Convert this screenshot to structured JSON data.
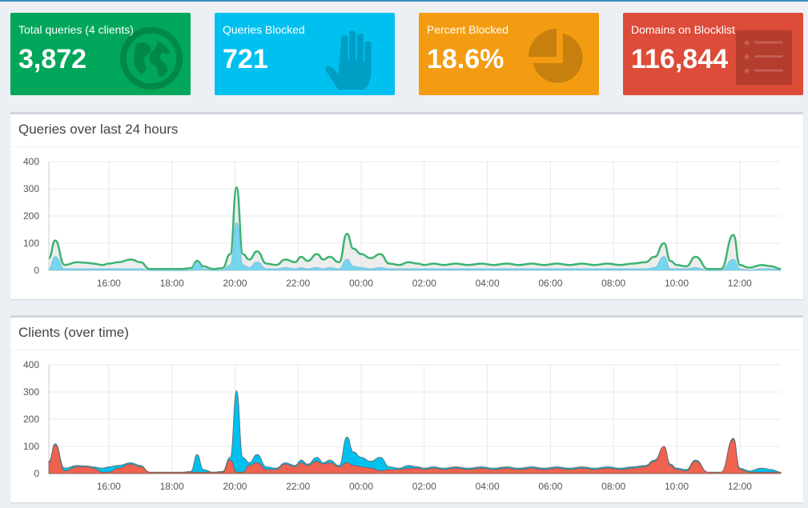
{
  "stats": [
    {
      "label": "Total queries (4 clients)",
      "value": "3,872",
      "color": "#00a65a",
      "icon": "globe-icon"
    },
    {
      "label": "Queries Blocked",
      "value": "721",
      "color": "#00c0ef",
      "icon": "hand-icon"
    },
    {
      "label": "Percent Blocked",
      "value": "18.6%",
      "color": "#f39c12",
      "icon": "pie-chart-icon"
    },
    {
      "label": "Domains on Blocklist",
      "value": "116,844",
      "color": "#dd4b39",
      "icon": "list-icon"
    }
  ],
  "queries_panel": {
    "title": "Queries over last 24 hours"
  },
  "clients_panel": {
    "title": "Clients (over time)"
  },
  "chart_data": [
    {
      "type": "area",
      "ylim": [
        0,
        400
      ],
      "yticks": [
        "0",
        "100",
        "200",
        "300",
        "400"
      ],
      "x": [
        14.1,
        14.3,
        14.6,
        15.0,
        15.3,
        15.5,
        15.8,
        16.0,
        16.3,
        16.7,
        17.0,
        17.3,
        17.7,
        18.0,
        18.3,
        18.6,
        18.8,
        19.0,
        19.3,
        19.6,
        19.85,
        20.05,
        20.25,
        20.45,
        20.7,
        21.0,
        21.3,
        21.6,
        21.9,
        22.1,
        22.3,
        22.6,
        22.8,
        23.0,
        23.3,
        23.55,
        23.75,
        24.0,
        24.3,
        24.6,
        24.9,
        25.2,
        25.5,
        25.8,
        26.0,
        26.3,
        26.6,
        27.0,
        27.4,
        27.8,
        28.2,
        28.6,
        29.0,
        29.4,
        29.8,
        30.2,
        30.6,
        31.0,
        31.4,
        31.8,
        32.2,
        32.6,
        33.0,
        33.3,
        33.6,
        33.8,
        34.0,
        34.3,
        34.6,
        35.0,
        35.4,
        35.8,
        36.0,
        36.3,
        36.7,
        37.0,
        37.3
      ],
      "xticks": [
        "16:00",
        "18:00",
        "20:00",
        "22:00",
        "00:00",
        "02:00",
        "04:00",
        "06:00",
        "08:00",
        "10:00",
        "12:00"
      ],
      "xtick_values": [
        16,
        18,
        20,
        22,
        24,
        26,
        28,
        30,
        32,
        34,
        36
      ],
      "series": [
        {
          "values": [
            45,
            110,
            20,
            30,
            28,
            25,
            20,
            25,
            30,
            40,
            30,
            5,
            5,
            5,
            5,
            8,
            35,
            15,
            5,
            8,
            60,
            305,
            60,
            40,
            70,
            25,
            20,
            40,
            30,
            50,
            35,
            60,
            40,
            50,
            30,
            135,
            80,
            60,
            45,
            60,
            25,
            20,
            30,
            25,
            20,
            25,
            20,
            25,
            20,
            25,
            20,
            25,
            20,
            25,
            20,
            25,
            20,
            25,
            20,
            25,
            20,
            25,
            30,
            50,
            100,
            35,
            20,
            15,
            50,
            5,
            5,
            130,
            20,
            10,
            20,
            15,
            5
          ],
          "color": "#3cb371",
          "fill": "rgba(220,220,220,0.5)"
        },
        {
          "values": [
            5,
            50,
            5,
            5,
            5,
            5,
            5,
            5,
            5,
            5,
            5,
            0,
            0,
            0,
            0,
            0,
            30,
            5,
            0,
            0,
            20,
            175,
            20,
            10,
            30,
            5,
            5,
            10,
            5,
            10,
            5,
            10,
            5,
            10,
            5,
            40,
            15,
            10,
            5,
            10,
            5,
            5,
            5,
            5,
            5,
            5,
            5,
            5,
            5,
            5,
            5,
            5,
            5,
            5,
            5,
            5,
            5,
            5,
            5,
            5,
            5,
            5,
            5,
            10,
            50,
            5,
            5,
            5,
            10,
            0,
            0,
            40,
            5,
            0,
            5,
            5,
            0
          ],
          "color": "#7ec8e3",
          "fill": "rgba(0,192,239,0.5)"
        }
      ]
    },
    {
      "type": "area",
      "stacked": true,
      "ylim": [
        0,
        400
      ],
      "yticks": [
        "0",
        "100",
        "200",
        "300",
        "400"
      ],
      "xticks": [
        "16:00",
        "18:00",
        "20:00",
        "22:00",
        "00:00",
        "02:00",
        "04:00",
        "06:00",
        "08:00",
        "10:00",
        "12:00"
      ],
      "xtick_values": [
        16,
        18,
        20,
        22,
        24,
        26,
        28,
        30,
        32,
        34,
        36
      ],
      "series": [
        {
          "values": [
            40,
            105,
            10,
            25,
            25,
            20,
            5,
            5,
            20,
            35,
            25,
            5,
            5,
            5,
            5,
            5,
            5,
            5,
            5,
            5,
            50,
            5,
            5,
            30,
            40,
            15,
            15,
            35,
            25,
            40,
            30,
            45,
            35,
            40,
            25,
            40,
            30,
            25,
            20,
            10,
            15,
            15,
            20,
            20,
            15,
            20,
            15,
            20,
            15,
            20,
            15,
            20,
            15,
            20,
            15,
            20,
            15,
            20,
            15,
            20,
            15,
            20,
            25,
            45,
            100,
            30,
            15,
            10,
            45,
            5,
            5,
            125,
            15,
            5,
            5,
            5,
            5
          ],
          "color": "#f0624f"
        },
        {
          "values": [
            5,
            5,
            10,
            5,
            3,
            5,
            15,
            20,
            10,
            5,
            5,
            0,
            0,
            0,
            0,
            3,
            65,
            10,
            0,
            3,
            10,
            300,
            55,
            10,
            30,
            10,
            5,
            5,
            5,
            10,
            5,
            15,
            5,
            10,
            5,
            95,
            50,
            35,
            25,
            50,
            10,
            5,
            10,
            5,
            5,
            5,
            5,
            5,
            5,
            5,
            5,
            5,
            5,
            5,
            5,
            5,
            5,
            5,
            5,
            5,
            5,
            5,
            5,
            5,
            0,
            5,
            5,
            5,
            5,
            0,
            0,
            5,
            5,
            5,
            15,
            10,
            0
          ],
          "color": "#00c0ef"
        }
      ]
    }
  ]
}
